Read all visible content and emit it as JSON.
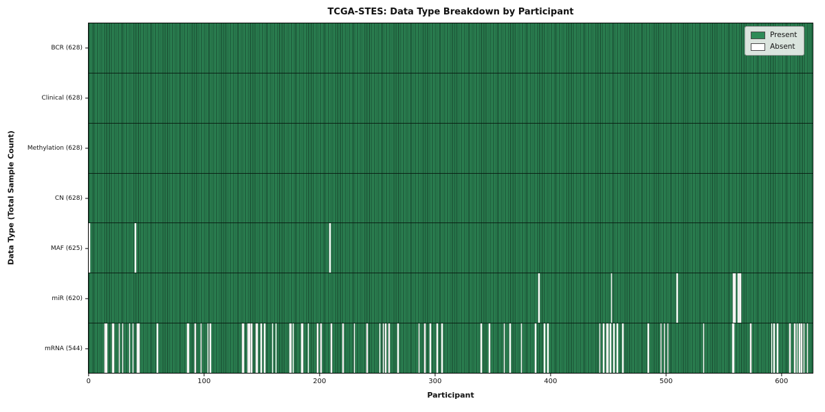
{
  "title": "TCGA-STES: Data Type Breakdown by Participant",
  "axes": {
    "xlabel": "Participant",
    "ylabel": "Data Type (Total Sample Count)"
  },
  "legend": {
    "items": [
      {
        "label": "Present",
        "color": "#2e8b57"
      },
      {
        "label": "Absent",
        "color": "#ffffff"
      }
    ]
  },
  "chart_data": {
    "type": "heatmap",
    "title": "TCGA-STES: Data Type Breakdown by Participant",
    "xlabel": "Participant",
    "ylabel": "Data Type (Total Sample Count)",
    "legend": [
      "Present",
      "Absent"
    ],
    "legend_position": "upper right",
    "colors": {
      "present": "#2e8b57",
      "present_edge": "#143e28",
      "absent": "#f8f8f6"
    },
    "n_participants": 628,
    "x_ticks": [
      0,
      100,
      200,
      300,
      400,
      500,
      600
    ],
    "xlim": [
      -0.5,
      627.5
    ],
    "rows": [
      {
        "data_type": "BCR",
        "label": "BCR (628)",
        "present_count": 628,
        "absent_participants": []
      },
      {
        "data_type": "Clinical",
        "label": "Clinical (628)",
        "present_count": 628,
        "absent_participants": []
      },
      {
        "data_type": "Methylation",
        "label": "Methylation (628)",
        "present_count": 628,
        "absent_participants": []
      },
      {
        "data_type": "CN",
        "label": "CN (628)",
        "present_count": 628,
        "absent_participants": []
      },
      {
        "data_type": "MAF",
        "label": "MAF (625)",
        "present_count": 625,
        "absent_participants": [
          0,
          40,
          209
        ]
      },
      {
        "data_type": "miR",
        "label": "miR (620)",
        "present_count": 620,
        "absent_participants": [
          390,
          453,
          510,
          559,
          560,
          563,
          564,
          565
        ]
      },
      {
        "data_type": "mRNA",
        "label": "mRNA (544)",
        "present_count": 544,
        "absent_participants": [
          14,
          15,
          20,
          21,
          26,
          29,
          35,
          38,
          42,
          43,
          59,
          85,
          86,
          92,
          97,
          103,
          105,
          133,
          134,
          138,
          139,
          141,
          145,
          146,
          149,
          152,
          159,
          162,
          174,
          175,
          177,
          184,
          185,
          190,
          198,
          201,
          210,
          220,
          230,
          241,
          252,
          255,
          257,
          260,
          268,
          286,
          291,
          296,
          302,
          306,
          340,
          347,
          360,
          365,
          375,
          387,
          395,
          398,
          443,
          446,
          449,
          450,
          452,
          455,
          458,
          463,
          485,
          496,
          499,
          502,
          533,
          558,
          559,
          574,
          592,
          594,
          597,
          608,
          612,
          614,
          616,
          618,
          620,
          623
        ]
      }
    ]
  }
}
